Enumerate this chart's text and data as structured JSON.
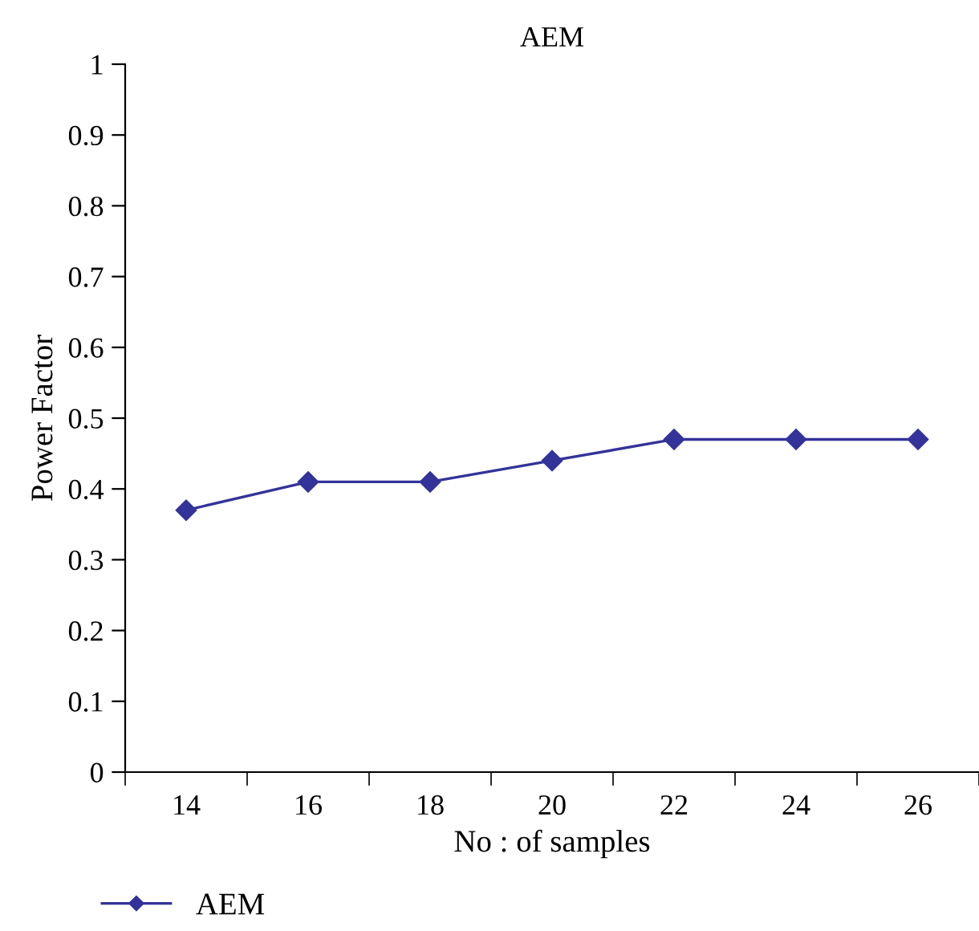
{
  "chart_data": {
    "type": "line",
    "title": "AEM",
    "xlabel": "No : of samples",
    "ylabel": "Power Factor",
    "categories": [
      "14",
      "16",
      "18",
      "20",
      "22",
      "24",
      "26"
    ],
    "series": [
      {
        "name": "AEM",
        "color": "#333399",
        "values": [
          0.37,
          0.41,
          0.41,
          0.44,
          0.47,
          0.47,
          0.47
        ]
      }
    ],
    "ylim": [
      0,
      1
    ],
    "yticks": [
      0,
      0.1,
      0.2,
      0.3,
      0.4,
      0.5,
      0.6,
      0.7,
      0.8,
      0.9,
      1
    ],
    "marker": "diamond",
    "line_style": "solid",
    "grid": false,
    "legend": "bottom left"
  }
}
